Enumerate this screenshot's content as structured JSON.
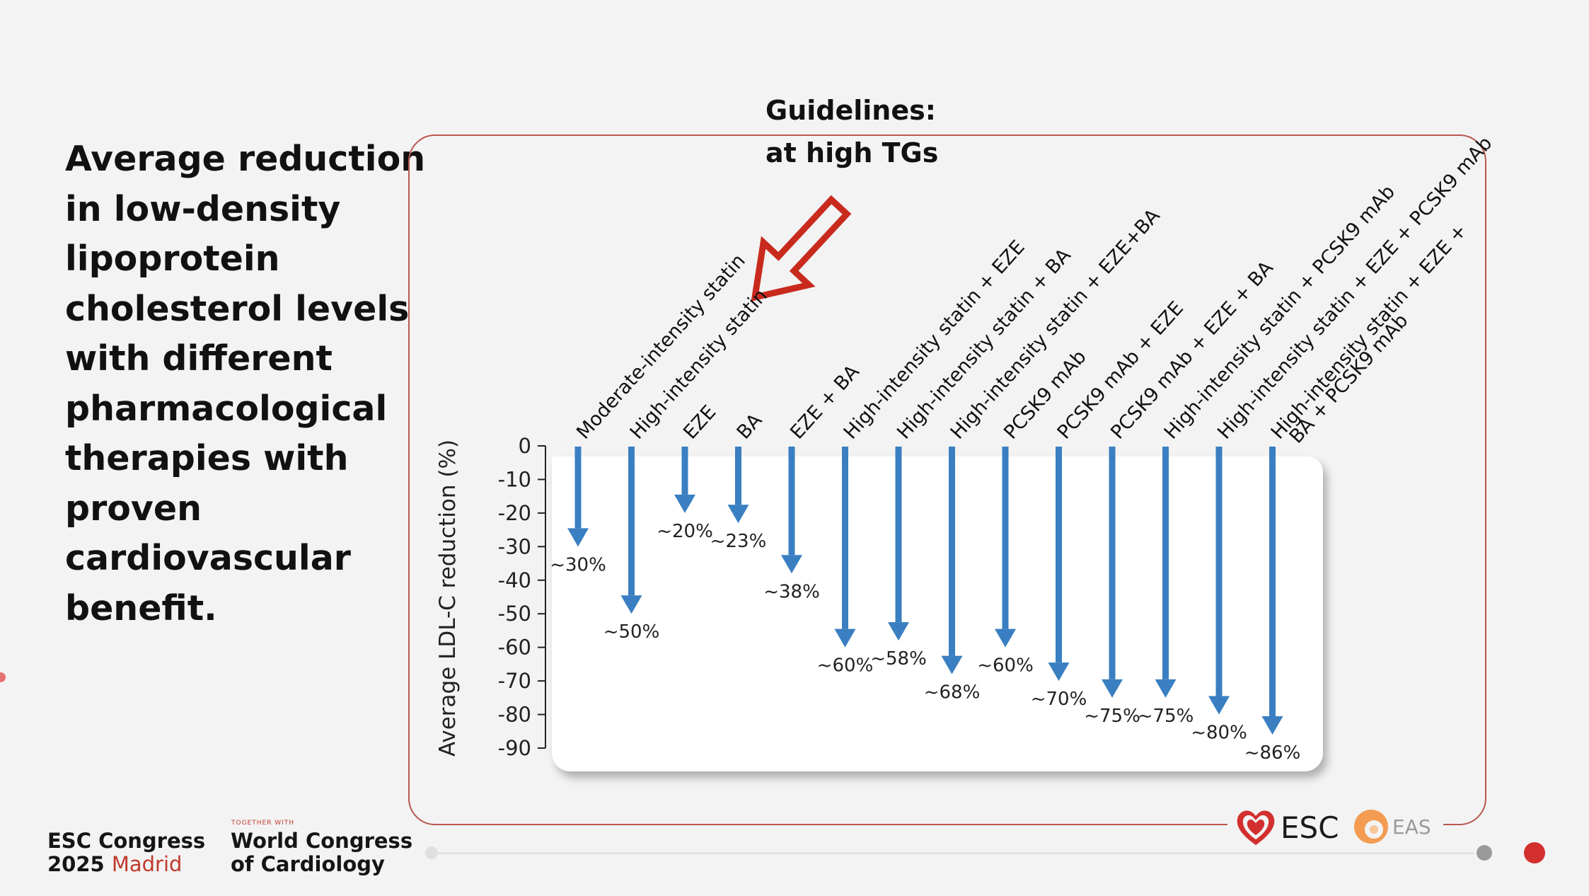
{
  "slide": {
    "title_lines": [
      "Average reduction",
      "in low-density",
      "lipoprotein",
      "cholesterol levels",
      "with different",
      "pharmacological",
      "therapies with",
      "proven",
      "cardiovascular",
      "benefit."
    ],
    "callout_lines": [
      "Guidelines:",
      "at high TGs"
    ]
  },
  "chart_data": {
    "type": "bar",
    "orientation": "downward arrows",
    "ylabel": "Average LDL-C reduction (%)",
    "yticks": [
      0,
      -10,
      -20,
      -30,
      -40,
      -50,
      -60,
      -70,
      -80,
      -90
    ],
    "ylim": [
      -90,
      0
    ],
    "grid": false,
    "bar_color": "#3a7fc1",
    "categories": [
      [
        "Moderate-intensity statin"
      ],
      [
        "High-intensity statin"
      ],
      [
        "EZE"
      ],
      [
        "BA"
      ],
      [
        "EZE + BA"
      ],
      [
        "High-intensity statin + EZE"
      ],
      [
        "High-intensity statin + BA"
      ],
      [
        "High-intensity statin + EZE+BA"
      ],
      [
        "PCSK9 mAb"
      ],
      [
        "PCSK9 mAb + EZE"
      ],
      [
        "PCSK9 mAb + EZE + BA"
      ],
      [
        "High-intensity statin + PCSK9 mAb"
      ],
      [
        "High-intensity statin + EZE + PCSK9 mAb"
      ],
      [
        "High-intensity statin + EZE +",
        "BA + PCSK9 mAb"
      ]
    ],
    "values": [
      -30,
      -50,
      -20,
      -23,
      -38,
      -60,
      -58,
      -68,
      -60,
      -70,
      -75,
      -75,
      -80,
      -86
    ],
    "data_labels": [
      "~30%",
      "~50%",
      "~20%",
      "~23%",
      "~38%",
      "~60%",
      "~58%",
      "~68%",
      "~60%",
      "~70%",
      "~75%",
      "~75%",
      "~80%",
      "~86%"
    ]
  },
  "footer": {
    "congress_line1": "ESC Congress",
    "congress_year": "2025",
    "congress_city": "Madrid",
    "together_with": "TOGETHER WITH",
    "wcc_line1": "World Congress",
    "wcc_line2": "of Cardiology",
    "esc_text": "ESC",
    "eas_text": "EAS",
    "esc_color": "#d32f2f",
    "eas_color": "#f39c52"
  }
}
